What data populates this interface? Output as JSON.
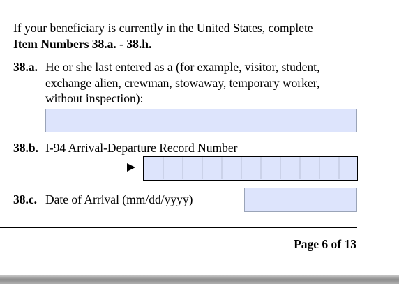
{
  "intro": {
    "line": "If your beneficiary is currently in the United States, complete",
    "bold": "Item Numbers 38.a. - 38.h."
  },
  "items": [
    {
      "number": "38.a.",
      "lines": [
        "He or she last entered as a (for example, visitor, student,",
        "exchange alien, crewman, stowaway, temporary worker,",
        "without inspection):"
      ]
    },
    {
      "number": "38.b.",
      "lines": [
        "I-94 Arrival-Departure Record Number"
      ]
    },
    {
      "number": "38.c.",
      "lines": [
        "Date of Arrival (mm/dd/yyyy)"
      ]
    }
  ],
  "footer": {
    "page": "Page 6 of 13"
  }
}
